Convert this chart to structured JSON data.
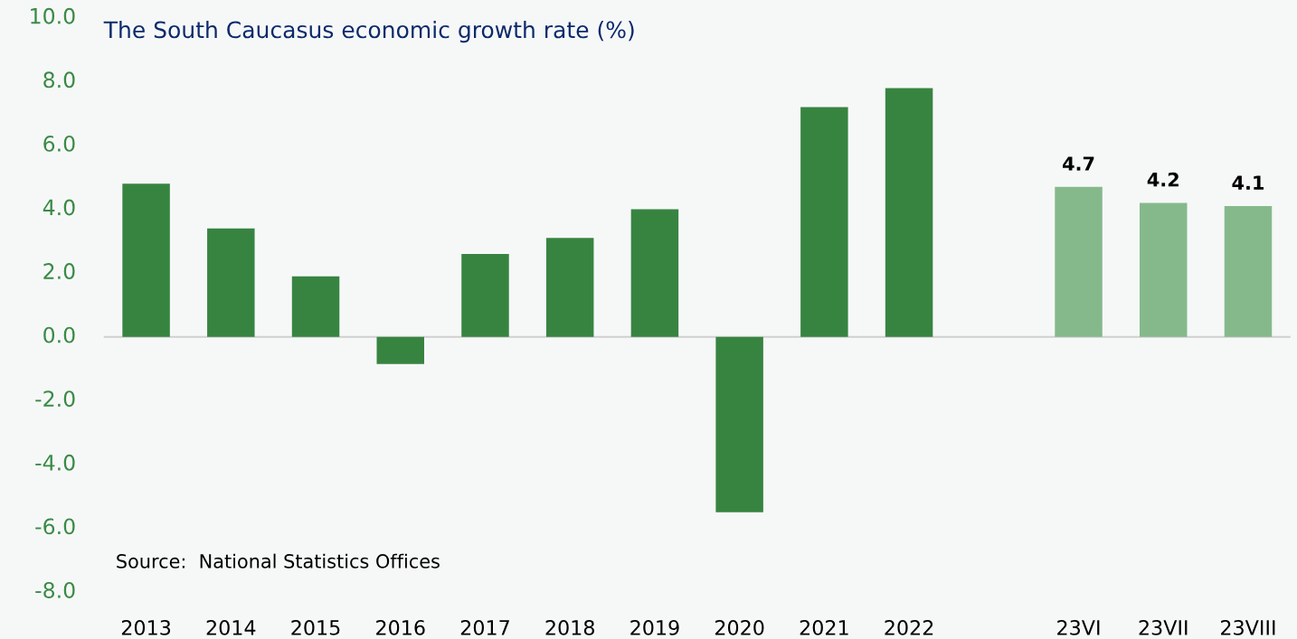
{
  "chart_data": {
    "type": "bar",
    "title": "The South Caucasus economic growth rate (%)",
    "categories": [
      "2013",
      "2014",
      "2015",
      "2016",
      "2017",
      "2018",
      "2019",
      "2020",
      "2021",
      "2022",
      null,
      "23VI",
      "23VII",
      "23VIII"
    ],
    "values": [
      4.8,
      3.4,
      1.9,
      -0.85,
      2.6,
      3.1,
      4.0,
      -5.5,
      7.2,
      7.8,
      null,
      4.7,
      4.2,
      4.1
    ],
    "colors": [
      "#378441",
      "#378441",
      "#378441",
      "#378441",
      "#378441",
      "#378441",
      "#378441",
      "#378441",
      "#378441",
      "#378441",
      "#378441",
      "#85b98b",
      "#85b98b",
      "#85b98b"
    ],
    "value_labels": [
      null,
      null,
      null,
      null,
      null,
      null,
      null,
      null,
      null,
      null,
      null,
      "4.7",
      "4.2",
      "4.1"
    ],
    "ylim": [
      -8,
      10
    ],
    "yticks": [
      {
        "value": -8,
        "label": "-8.0"
      },
      {
        "value": -6,
        "label": "-6.0"
      },
      {
        "value": -4,
        "label": "-4.0"
      },
      {
        "value": -2,
        "label": "-2.0"
      },
      {
        "value": 0,
        "label": "0.0"
      },
      {
        "value": 2,
        "label": "2.0"
      },
      {
        "value": 4,
        "label": "4.0"
      },
      {
        "value": 6,
        "label": "6.0"
      },
      {
        "value": 8,
        "label": "8.0"
      },
      {
        "value": 10,
        "label": "10.0"
      }
    ],
    "ref_lines": [
      {
        "axis": "y",
        "value": 0,
        "label": null,
        "color": "#d0d0d0"
      }
    ],
    "annotations": [
      "Source:  National Statistics Offices"
    ],
    "grid": false,
    "legend": false
  }
}
